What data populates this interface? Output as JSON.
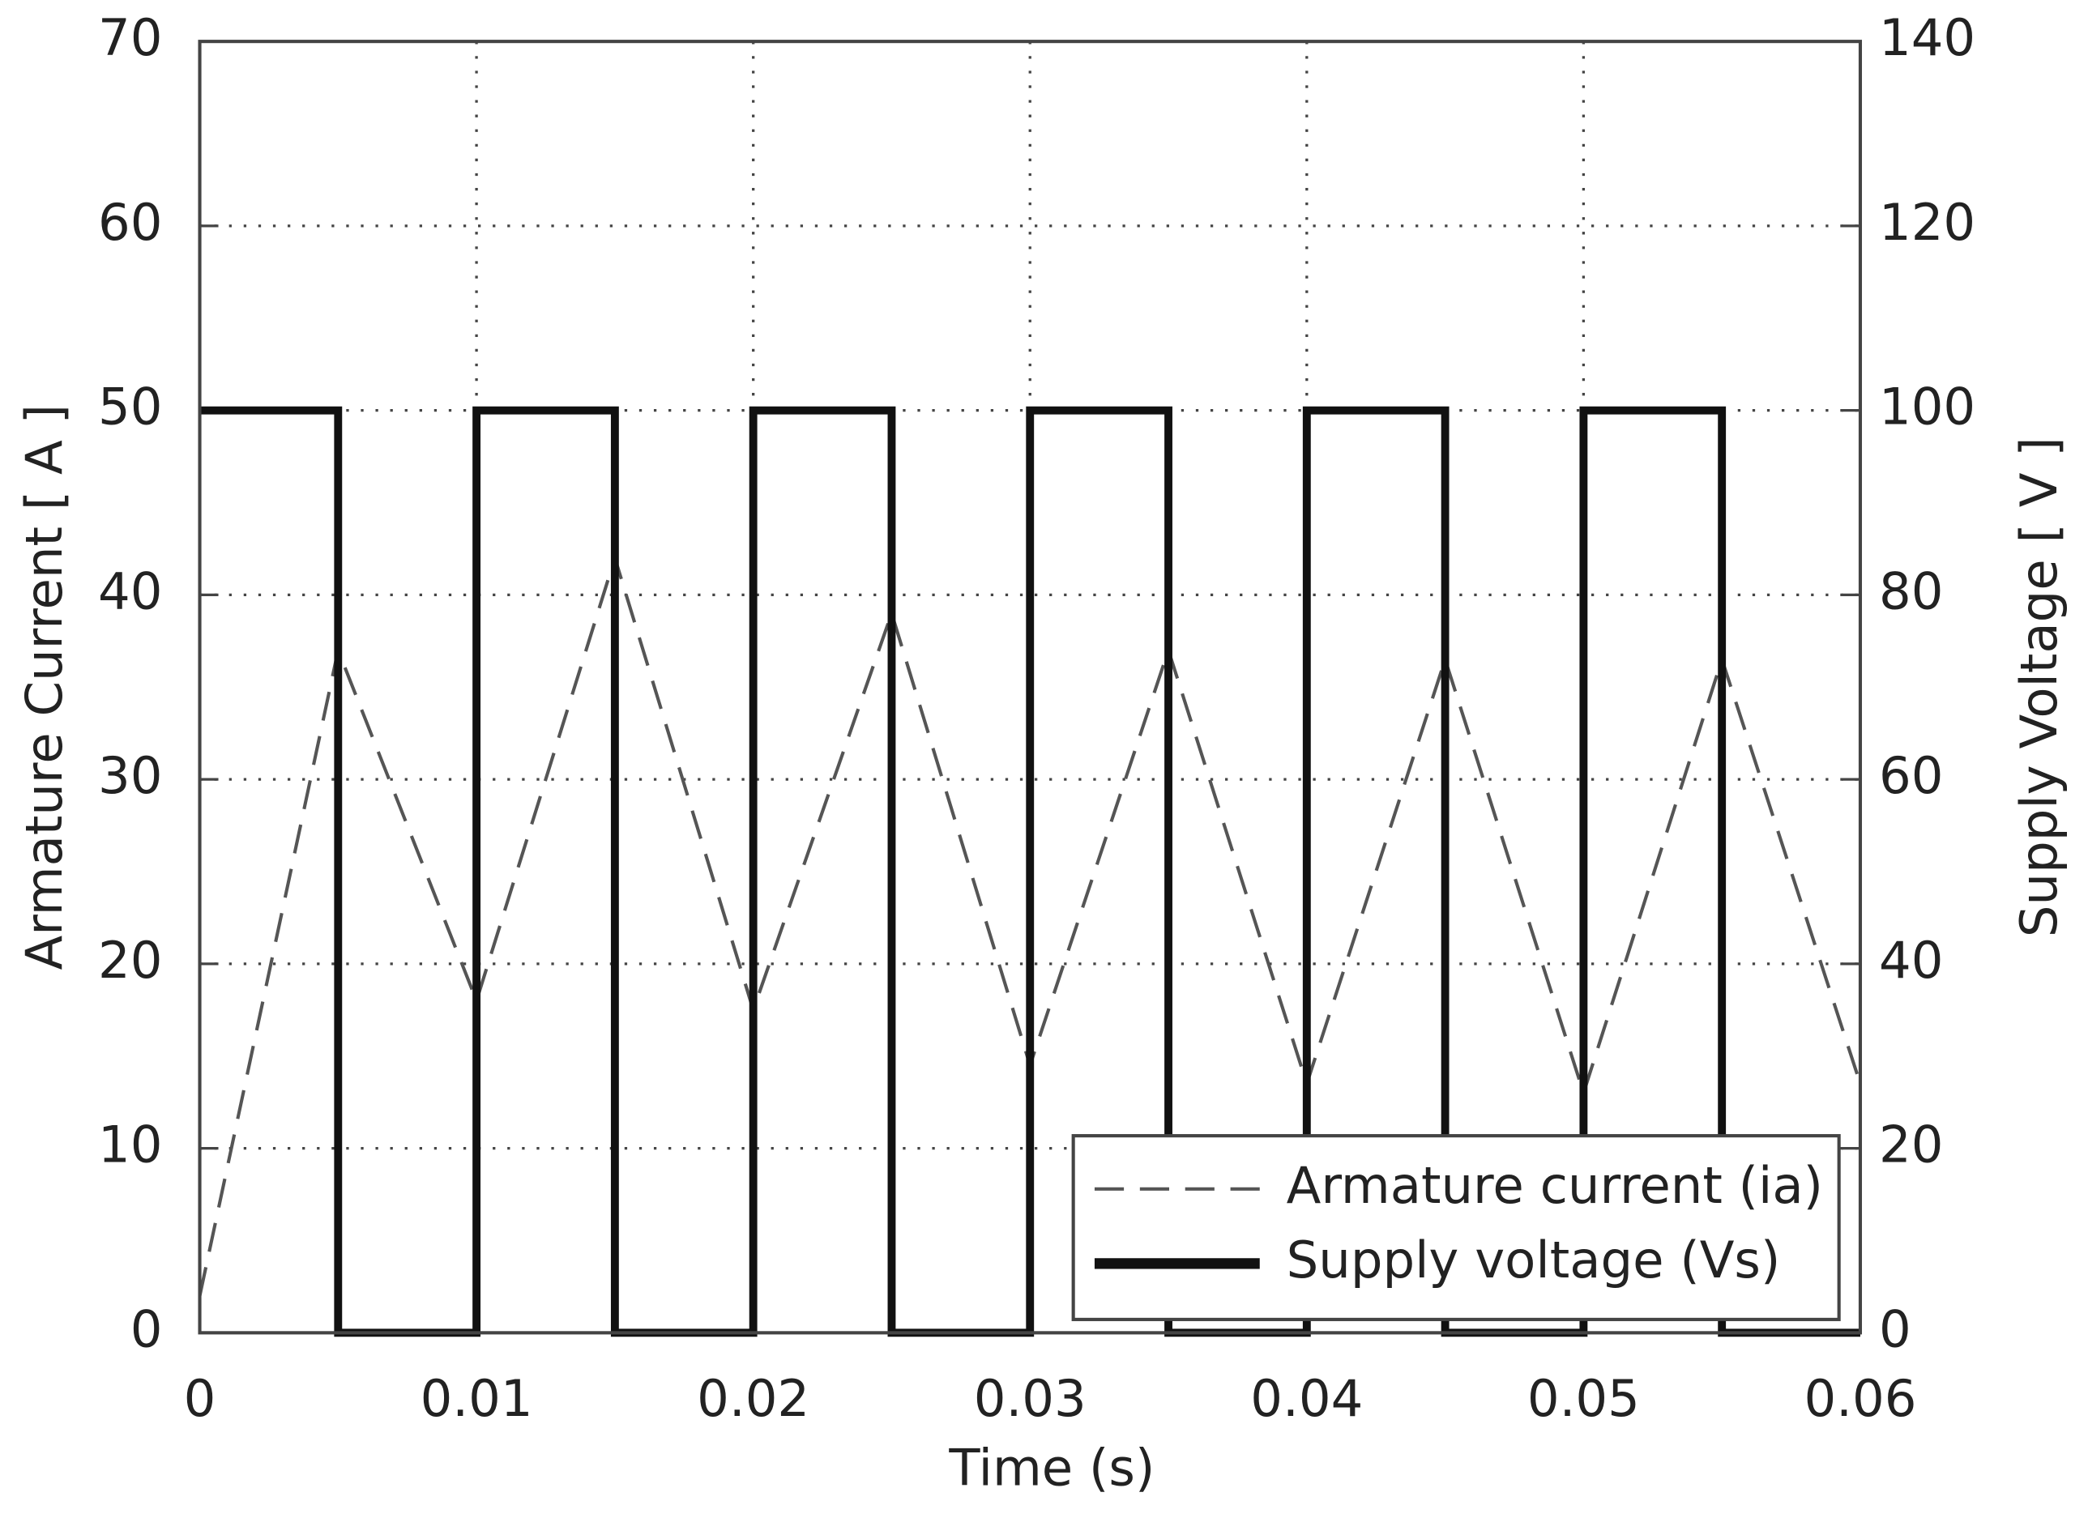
{
  "chart_data": {
    "type": "line",
    "xlabel": "Time (s)",
    "ylabel": "Armature Current [ A ]",
    "y2label": "Supply Voltage [ V ]",
    "xlim": [
      0,
      0.06
    ],
    "xticks": [
      0,
      0.01,
      0.02,
      0.03,
      0.04,
      0.05,
      0.06
    ],
    "ylim": [
      0,
      70
    ],
    "yticks": [
      0,
      10,
      20,
      30,
      40,
      50,
      60,
      70
    ],
    "y2lim": [
      0,
      140
    ],
    "y2ticks": [
      0,
      20,
      40,
      60,
      80,
      100,
      120,
      140
    ],
    "grid": true,
    "legend": "lower right",
    "series": [
      {
        "name": "Armature current (ia)",
        "color": "#555555",
        "style": "dashed",
        "x": [
          0,
          0.005,
          0.01,
          0.015,
          0.02,
          0.025,
          0.03,
          0.035,
          0.04,
          0.045,
          0.05,
          0.055,
          0.06
        ],
        "values": [
          2,
          37,
          18,
          42,
          17.5,
          39,
          14.5,
          37,
          13.5,
          36.5,
          13,
          36.5,
          13.5
        ]
      },
      {
        "name": "Supply voltage (Vs)",
        "color": "#111111",
        "style": "solid",
        "axis": "y2",
        "x": [
          0,
          0.005,
          0.005,
          0.01,
          0.01,
          0.015,
          0.015,
          0.02,
          0.02,
          0.025,
          0.025,
          0.03,
          0.03,
          0.035,
          0.035,
          0.04,
          0.04,
          0.045,
          0.045,
          0.05,
          0.05,
          0.055,
          0.055,
          0.06
        ],
        "values": [
          100,
          100,
          0,
          0,
          100,
          100,
          0,
          0,
          100,
          100,
          0,
          0,
          100,
          100,
          0,
          0,
          100,
          100,
          0,
          0,
          100,
          100,
          0,
          0
        ]
      }
    ]
  }
}
